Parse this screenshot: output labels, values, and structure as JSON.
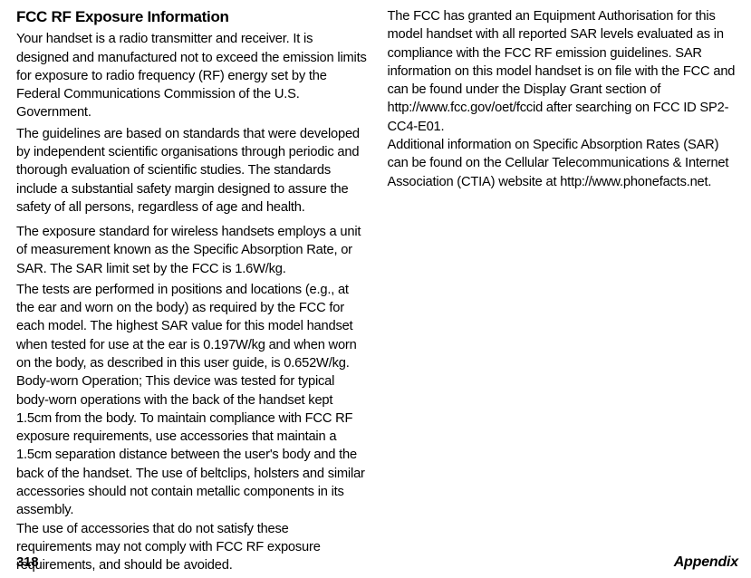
{
  "heading": "FCC RF Exposure Information",
  "col1": {
    "p1": "Your handset is a radio transmitter and receiver. It is designed and manufactured not to exceed the emission limits for exposure to radio frequency (RF) energy set by the Federal Communications Commission of the U.S. Government.",
    "p2": "The guidelines are based on standards that were developed by independent scientific organisations through periodic and thorough evaluation of scientific studies. The standards include a substantial safety margin designed to assure the safety of all persons, regardless of age and health.",
    "p3": "The exposure standard for wireless handsets employs a unit of measurement known as the Specific Absorption Rate, or SAR. The SAR limit set by the FCC is 1.6W/kg.",
    "p4": "The tests are performed in positions and locations (e.g., at the ear and worn on the body) as required by the FCC for each model. The highest SAR value for this model handset when tested for use at the ear is 0.197W/kg and when worn on the body, as described in this user guide, is 0.652W/kg. Body-worn Operation; This device was tested for typical body-worn operations with the back of the handset kept 1.5cm from the body. To maintain compliance with FCC RF exposure requirements, use accessories that maintain a 1.5cm separation distance between the user's body and the back of the handset. The use of beltclips, holsters and similar accessories should not contain metallic components in its assembly.",
    "p5": "The use of accessories that do not satisfy these requirements may not comply with FCC RF exposure requirements, and should be avoided."
  },
  "col2": {
    "p1": "The FCC has granted an Equipment Authorisation for this model handset with all reported SAR levels evaluated as in compliance with the FCC RF emission guidelines. SAR information on this model handset is on file with the FCC and can be found under the Display Grant section of http://www.fcc.gov/oet/fccid after searching on FCC ID SP2-CC4-E01.",
    "p2": "Additional information on Specific Absorption Rates (SAR) can be found on the Cellular Telecommunications & Internet Association (CTIA) website at http://www.phonefacts.net."
  },
  "footer": {
    "page": "318",
    "section": "Appendix"
  }
}
